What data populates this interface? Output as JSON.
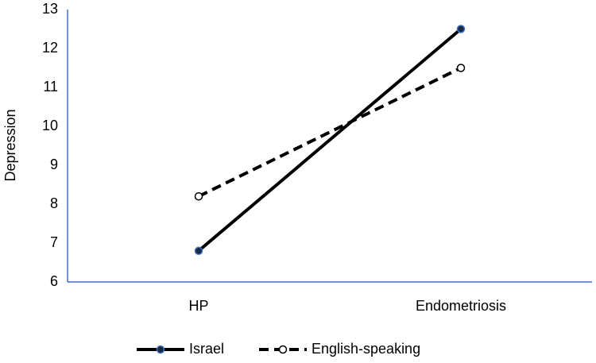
{
  "chart_data": {
    "type": "line",
    "y_label": "Depression",
    "categories": [
      "HP",
      "Endometriosis"
    ],
    "series": [
      {
        "name": "Israel",
        "color": "#000000",
        "line_style": "solid",
        "marker_fill": "#1a2a44",
        "marker_stroke": "#4472c4",
        "values": [
          6.8,
          12.5
        ]
      },
      {
        "name": "English-speaking",
        "color": "#000000",
        "line_style": "dashed",
        "marker_fill": "#ffffff",
        "marker_stroke": "#000000",
        "values": [
          8.2,
          11.5
        ]
      }
    ],
    "ylim": [
      6,
      13
    ],
    "yticks": [
      6,
      7,
      8,
      9,
      10,
      11,
      12,
      13
    ],
    "axis_color": "#4472c4",
    "grid": false,
    "legend": "bottom"
  }
}
